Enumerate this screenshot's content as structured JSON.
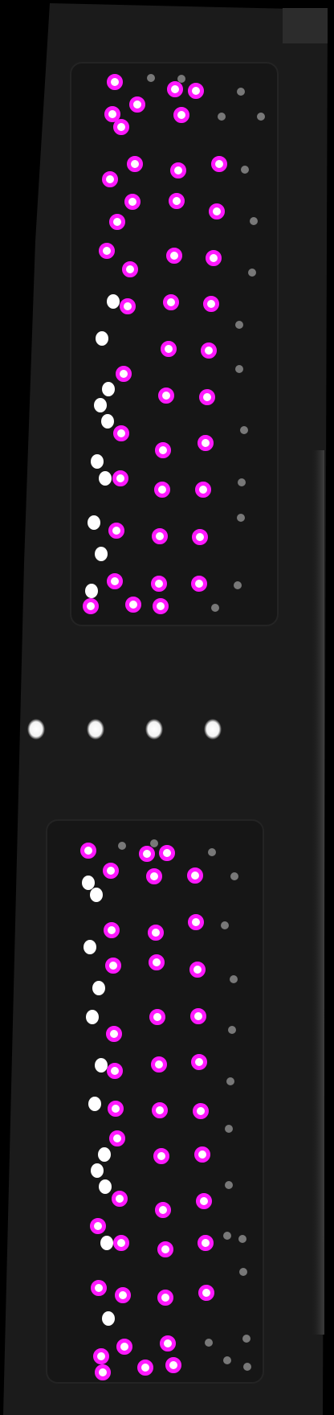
{
  "image": {
    "background_color": "#000000",
    "plate_color": "#1b1b1b",
    "well_region_color": "#171717",
    "marker_ring_color": "#ff19ff",
    "bright_spot_color": "#ffffff",
    "dim_spot_color": "#9a9a9a"
  }
}
